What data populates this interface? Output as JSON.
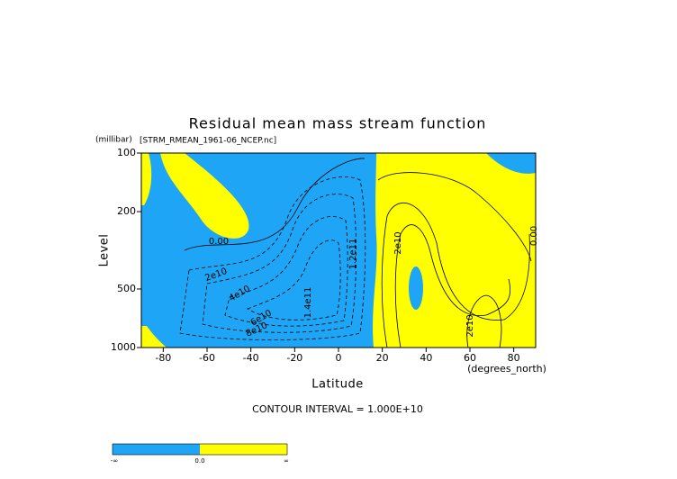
{
  "chart_data": {
    "type": "contour",
    "title": "Residual mean mass stream function",
    "subtitle": "[STRM_RMEAN_1961-06_NCEP.nc]",
    "x_label": "Latitude",
    "x_units": "(degrees_north)",
    "y_label": "Level",
    "y_units": "(millibar)",
    "xlim": [
      -90,
      90
    ],
    "xticks": [
      -80,
      -60,
      -40,
      -20,
      0,
      20,
      40,
      60,
      80
    ],
    "ylim": [
      1000,
      100
    ],
    "yticks": [
      100,
      200,
      500,
      1000
    ],
    "y_scale": "log",
    "fill_colors": [
      "#1ea5f5",
      "#ffff00"
    ],
    "contour_labels": [
      "0.00",
      "2e10",
      "4e10",
      "6e10",
      "8e10",
      "1.4e11",
      "1.2e11",
      "2e10",
      "2e10",
      "0.00"
    ],
    "footnote": "CONTOUR INTERVAL = 1.000E+10",
    "colorbar_labels": [
      "-∞",
      "0.0",
      "∞"
    ]
  }
}
